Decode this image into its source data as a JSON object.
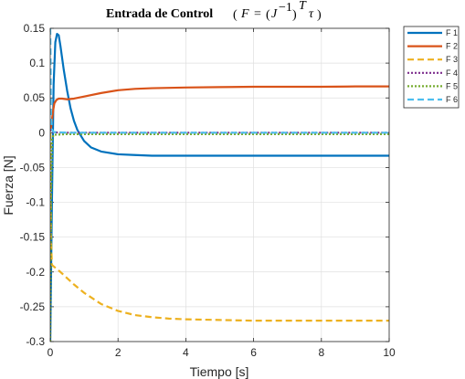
{
  "chart_data": {
    "type": "line",
    "title": "Entrada de Control",
    "title_math": {
      "var_F": "F",
      "equals": "=",
      "var_J": "J",
      "exponent_inv": "−1",
      "exponent_T": "T",
      "var_tau": "τ"
    },
    "xlabel": "Tiempo [s]",
    "ylabel": "Fuerza [N]",
    "xlim": [
      0,
      10
    ],
    "ylim": [
      -0.3,
      0.15
    ],
    "xticks": [
      0,
      2,
      4,
      6,
      8,
      10
    ],
    "xtick_labels": [
      "0",
      "2",
      "4",
      "6",
      "8",
      "10"
    ],
    "yticks": [
      0.15,
      0.1,
      0.05,
      0,
      -0.05,
      -0.1,
      -0.15,
      -0.2,
      -0.25,
      -0.3
    ],
    "ytick_labels": [
      "0.15",
      "0.1",
      "0.05",
      "0",
      "-0.05",
      "-0.1",
      "-0.15",
      "-0.2",
      "-0.25",
      "-0.3"
    ],
    "grid": true,
    "legend_position": "outside-top-right",
    "series": [
      {
        "name": "F 1",
        "color": "#0072BD",
        "style": "solid",
        "x": [
          0,
          0.05,
          0.1,
          0.15,
          0.2,
          0.25,
          0.3,
          0.4,
          0.5,
          0.6,
          0.7,
          0.8,
          1.0,
          1.2,
          1.5,
          2,
          2.5,
          3,
          4,
          5,
          6,
          7,
          8,
          9,
          10
        ],
        "y": [
          -0.3,
          -0.1,
          0.07,
          0.13,
          0.142,
          0.14,
          0.125,
          0.09,
          0.06,
          0.035,
          0.017,
          0.004,
          -0.012,
          -0.021,
          -0.027,
          -0.031,
          -0.032,
          -0.033,
          -0.033,
          -0.033,
          -0.033,
          -0.033,
          -0.033,
          -0.033,
          -0.033
        ]
      },
      {
        "name": "F 2",
        "color": "#D95319",
        "style": "solid",
        "x": [
          0,
          0.03,
          0.08,
          0.12,
          0.18,
          0.25,
          0.35,
          0.5,
          0.7,
          1.0,
          1.5,
          2,
          2.5,
          3,
          4,
          5,
          6,
          7,
          8,
          9,
          10
        ],
        "y": [
          0.002,
          0.01,
          0.03,
          0.042,
          0.047,
          0.049,
          0.049,
          0.048,
          0.049,
          0.052,
          0.057,
          0.061,
          0.063,
          0.064,
          0.065,
          0.0655,
          0.066,
          0.066,
          0.066,
          0.0665,
          0.0665
        ]
      },
      {
        "name": "F 3",
        "color": "#EDB120",
        "style": "dashed",
        "x": [
          0,
          0.02,
          0.05,
          0.1,
          0.2,
          0.3,
          0.5,
          0.7,
          1.0,
          1.5,
          2,
          2.5,
          3,
          3.5,
          4,
          5,
          6,
          7,
          8,
          9,
          10
        ],
        "y": [
          0.0,
          -0.15,
          -0.19,
          -0.192,
          -0.196,
          -0.2,
          -0.209,
          -0.218,
          -0.23,
          -0.246,
          -0.256,
          -0.262,
          -0.265,
          -0.267,
          -0.268,
          -0.269,
          -0.27,
          -0.27,
          -0.27,
          -0.27,
          -0.27
        ]
      },
      {
        "name": "F 4",
        "color": "#7E2F8E",
        "style": "dotted",
        "x": [
          0,
          0.02,
          0.05,
          0.1,
          0.5,
          1,
          2,
          4,
          6,
          8,
          10
        ],
        "y": [
          0.005,
          0.003,
          0.001,
          0.0005,
          0.0,
          0.0,
          0.0,
          0.0,
          0.0,
          0.0,
          0.0
        ]
      },
      {
        "name": "F 5",
        "color": "#77AC30",
        "style": "dotted",
        "x": [
          0,
          0.02,
          0.05,
          0.1,
          0.5,
          1,
          2,
          4,
          6,
          8,
          10
        ],
        "y": [
          -0.3,
          -0.1,
          -0.01,
          -0.003,
          -0.002,
          -0.002,
          -0.002,
          -0.002,
          -0.002,
          -0.002,
          -0.002
        ]
      },
      {
        "name": "F 6",
        "color": "#4DBEEE",
        "style": "dashed",
        "x": [
          0,
          0.01,
          0.02,
          0.05,
          0.1,
          0.5,
          1,
          2,
          4,
          6,
          8,
          10
        ],
        "y": [
          0.15,
          0.1,
          0.03,
          0.005,
          0.001,
          0.0,
          0.0,
          0.0,
          0.0,
          0.0,
          0.0,
          0.0
        ]
      }
    ]
  }
}
